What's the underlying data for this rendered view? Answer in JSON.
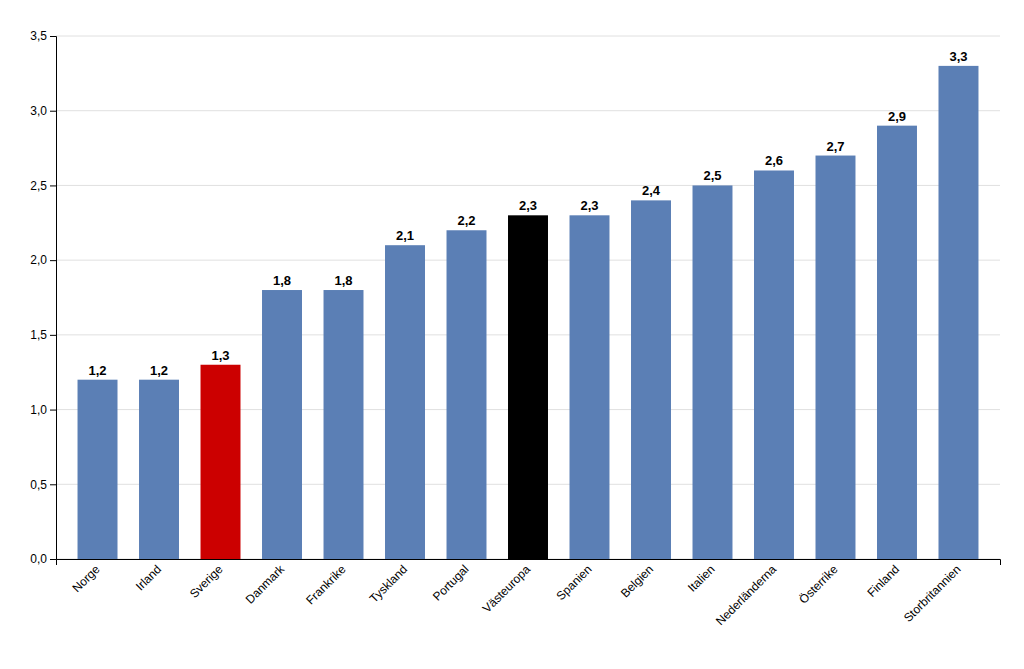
{
  "chart_data": {
    "type": "bar",
    "categories": [
      "Norge",
      "Irland",
      "Sverige",
      "Danmark",
      "Frankrike",
      "Tyskland",
      "Portugal",
      "Västeuropa",
      "Spanien",
      "Belgien",
      "Italien",
      "Nederländerna",
      "Österrike",
      "Finland",
      "Storbritannien"
    ],
    "values": [
      1.2,
      1.2,
      1.3,
      1.8,
      1.8,
      2.1,
      2.2,
      2.3,
      2.3,
      2.4,
      2.5,
      2.6,
      2.7,
      2.9,
      3.3
    ],
    "value_labels": [
      "1,2",
      "1,2",
      "1,3",
      "1,8",
      "1,8",
      "2,1",
      "2,2",
      "2,3",
      "2,3",
      "2,4",
      "2,5",
      "2,6",
      "2,7",
      "2,9",
      "3,3"
    ],
    "colors": [
      "#5b7fb5",
      "#5b7fb5",
      "#cc0000",
      "#5b7fb5",
      "#5b7fb5",
      "#5b7fb5",
      "#5b7fb5",
      "#000000",
      "#5b7fb5",
      "#5b7fb5",
      "#5b7fb5",
      "#5b7fb5",
      "#5b7fb5",
      "#5b7fb5",
      "#5b7fb5"
    ],
    "ylim": [
      0,
      3.5
    ],
    "yticks": [
      {
        "value": 0.0,
        "label": "0,0"
      },
      {
        "value": 0.5,
        "label": "0,5"
      },
      {
        "value": 1.0,
        "label": "1,0"
      },
      {
        "value": 1.5,
        "label": "1,5"
      },
      {
        "value": 2.0,
        "label": "2,0"
      },
      {
        "value": 2.5,
        "label": "2,5"
      },
      {
        "value": 3.0,
        "label": "3,0"
      },
      {
        "value": 3.5,
        "label": "3,5"
      }
    ],
    "grid": true,
    "data_labels": true
  }
}
